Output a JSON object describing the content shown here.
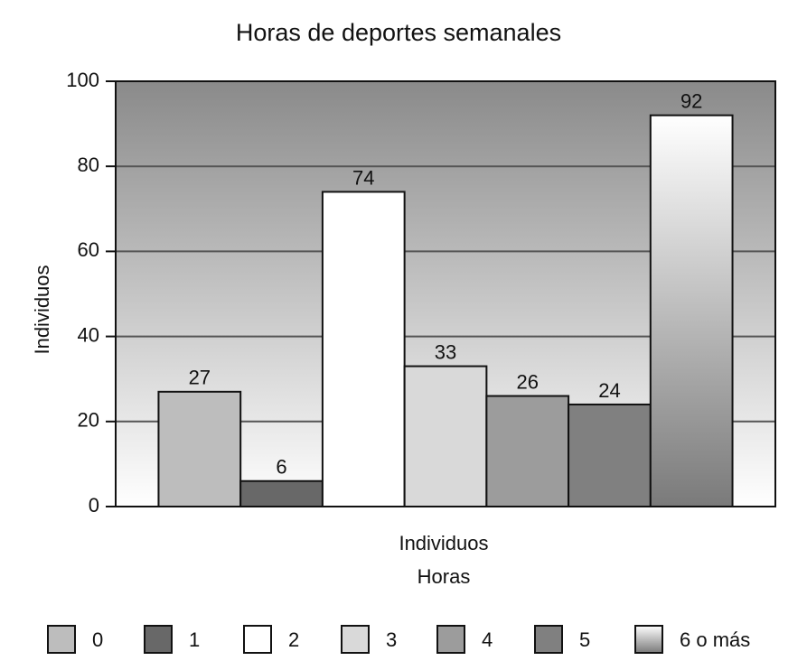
{
  "chart_data": {
    "type": "bar",
    "title": "Horas de deportes semanales",
    "y_label": "Individuos",
    "x_label": "Individuos",
    "x_sublabel": "Horas",
    "categories": [
      null
    ],
    "series": [
      {
        "name": "0",
        "color": "#bdbdbd",
        "values": [
          27
        ]
      },
      {
        "name": "1",
        "color": "#686868",
        "values": [
          6
        ]
      },
      {
        "name": "2",
        "color": "#ffffff",
        "values": [
          74
        ]
      },
      {
        "name": "3",
        "color": "#d9d9d9",
        "values": [
          33
        ]
      },
      {
        "name": "4",
        "color": "#9c9c9c",
        "values": [
          26
        ]
      },
      {
        "name": "5",
        "color": "#808080",
        "values": [
          24
        ]
      },
      {
        "name": "6 o más",
        "color": "#ffffff",
        "gradient_to": "#7a7a7a",
        "values": [
          92
        ]
      }
    ],
    "ylim": [
      0,
      100
    ],
    "yticks": [
      0,
      20,
      40,
      60,
      80,
      100
    ],
    "grid": true,
    "legend": "bottom"
  }
}
